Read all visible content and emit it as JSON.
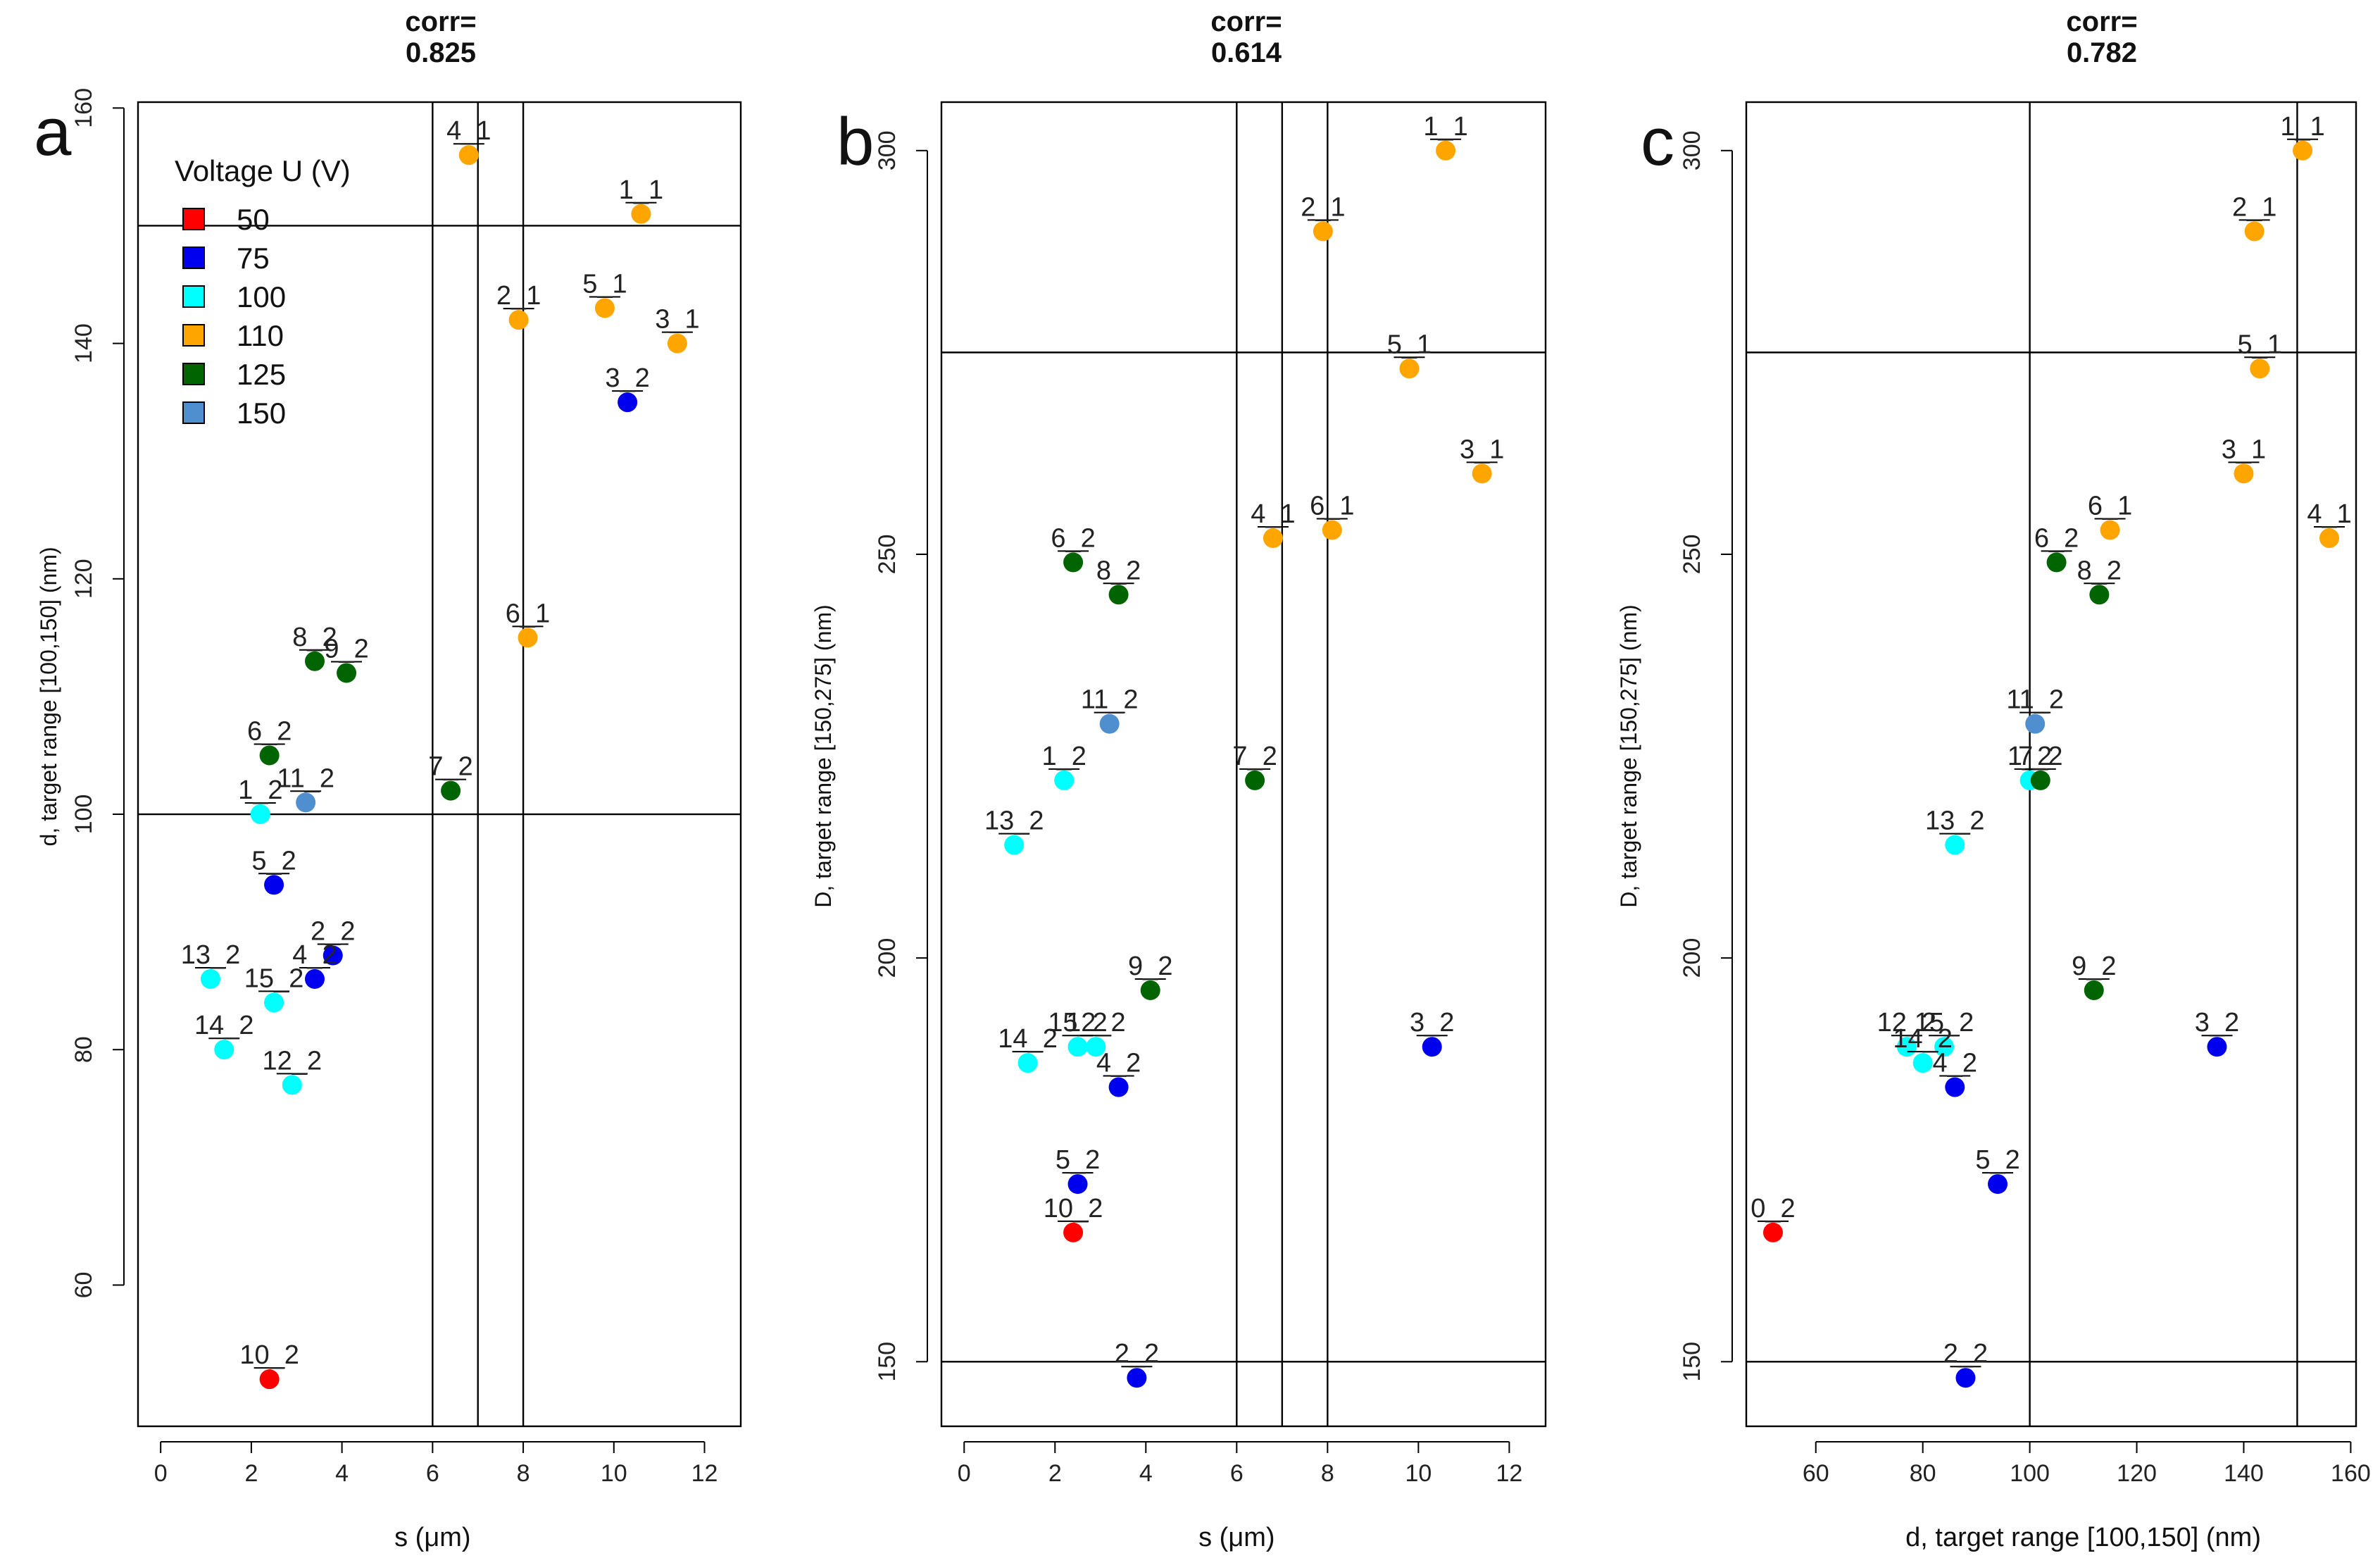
{
  "chart_data": [
    {
      "type": "scatter",
      "panel": "a",
      "title": "corr=",
      "subtitle": "0.825",
      "xlabel": "s  (μm)",
      "ylabel": "d, target range [100,150]   (nm)",
      "xlim": [
        -0.5,
        12.8
      ],
      "ylim": [
        48,
        160.5
      ],
      "xticks": [
        0,
        2,
        4,
        6,
        8,
        10,
        12
      ],
      "yticks": [
        60,
        80,
        100,
        120,
        140,
        160
      ],
      "vlines": [
        6,
        7,
        8
      ],
      "hlines": [
        100,
        150
      ],
      "legend": {
        "title": "Voltage  U (V)",
        "position": "top-left",
        "entries": [
          {
            "label": "50",
            "color": "#ff0000"
          },
          {
            "label": "75",
            "color": "#0000ee"
          },
          {
            "label": "100",
            "color": "#00ffff"
          },
          {
            "label": "110",
            "color": "#ffa500"
          },
          {
            "label": "125",
            "color": "#006400"
          },
          {
            "label": "150",
            "color": "#4f8fd0"
          }
        ]
      },
      "points": [
        {
          "label": "1_1",
          "x": 10.6,
          "y": 151,
          "color": "#ffa500"
        },
        {
          "label": "2_1",
          "x": 7.9,
          "y": 142,
          "color": "#ffa500"
        },
        {
          "label": "3_1",
          "x": 11.4,
          "y": 140,
          "color": "#ffa500"
        },
        {
          "label": "4_1",
          "x": 6.8,
          "y": 156,
          "color": "#ffa500"
        },
        {
          "label": "5_1",
          "x": 9.8,
          "y": 143,
          "color": "#ffa500"
        },
        {
          "label": "6_1",
          "x": 8.1,
          "y": 115,
          "color": "#ffa500"
        },
        {
          "label": "3_2",
          "x": 10.3,
          "y": 135,
          "color": "#0000ee"
        },
        {
          "label": "8_2",
          "x": 3.4,
          "y": 113,
          "color": "#006400"
        },
        {
          "label": "9_2",
          "x": 4.1,
          "y": 112,
          "color": "#006400"
        },
        {
          "label": "6_2",
          "x": 2.4,
          "y": 105,
          "color": "#006400"
        },
        {
          "label": "7_2",
          "x": 6.4,
          "y": 102,
          "color": "#006400"
        },
        {
          "label": "11_2",
          "x": 3.2,
          "y": 101,
          "color": "#4f8fd0"
        },
        {
          "label": "1_2",
          "x": 2.2,
          "y": 100,
          "color": "#00ffff"
        },
        {
          "label": "5_2",
          "x": 2.5,
          "y": 94,
          "color": "#0000ee"
        },
        {
          "label": "2_2",
          "x": 3.8,
          "y": 88,
          "color": "#0000ee"
        },
        {
          "label": "4_2",
          "x": 3.4,
          "y": 86,
          "color": "#0000ee"
        },
        {
          "label": "13_2",
          "x": 1.1,
          "y": 86,
          "color": "#00ffff"
        },
        {
          "label": "15_2",
          "x": 2.5,
          "y": 84,
          "color": "#00ffff"
        },
        {
          "label": "14_2",
          "x": 1.4,
          "y": 80,
          "color": "#00ffff"
        },
        {
          "label": "12_2",
          "x": 2.9,
          "y": 77,
          "color": "#00ffff"
        },
        {
          "label": "10_2",
          "x": 2.4,
          "y": 52,
          "color": "#ff0000"
        }
      ]
    },
    {
      "type": "scatter",
      "panel": "b",
      "title": "corr=",
      "subtitle": "0.614",
      "xlabel": "s  (μm)",
      "ylabel": "D, target range [150,275]   (nm)",
      "xlim": [
        -0.5,
        12.8
      ],
      "ylim": [
        142,
        306
      ],
      "xticks": [
        0,
        2,
        4,
        6,
        8,
        10,
        12
      ],
      "yticks": [
        150,
        200,
        250,
        300
      ],
      "vlines": [
        6,
        7,
        8
      ],
      "hlines": [
        150,
        275
      ],
      "points": [
        {
          "label": "1_1",
          "x": 10.6,
          "y": 300,
          "color": "#ffa500"
        },
        {
          "label": "2_1",
          "x": 7.9,
          "y": 290,
          "color": "#ffa500"
        },
        {
          "label": "5_1",
          "x": 9.8,
          "y": 273,
          "color": "#ffa500"
        },
        {
          "label": "3_1",
          "x": 11.4,
          "y": 260,
          "color": "#ffa500"
        },
        {
          "label": "4_1",
          "x": 6.8,
          "y": 252,
          "color": "#ffa500"
        },
        {
          "label": "6_1",
          "x": 8.1,
          "y": 253,
          "color": "#ffa500"
        },
        {
          "label": "6_2",
          "x": 2.4,
          "y": 249,
          "color": "#006400"
        },
        {
          "label": "8_2",
          "x": 3.4,
          "y": 245,
          "color": "#006400"
        },
        {
          "label": "11_2",
          "x": 3.2,
          "y": 229,
          "color": "#4f8fd0"
        },
        {
          "label": "1_2",
          "x": 2.2,
          "y": 222,
          "color": "#00ffff"
        },
        {
          "label": "7_2",
          "x": 6.4,
          "y": 222,
          "color": "#006400"
        },
        {
          "label": "13_2",
          "x": 1.1,
          "y": 214,
          "color": "#00ffff"
        },
        {
          "label": "9_2",
          "x": 4.1,
          "y": 196,
          "color": "#006400"
        },
        {
          "label": "15_2",
          "x": 2.5,
          "y": 189,
          "color": "#00ffff"
        },
        {
          "label": "12_2",
          "x": 2.9,
          "y": 189,
          "color": "#00ffff"
        },
        {
          "label": "14_2",
          "x": 1.4,
          "y": 187,
          "color": "#00ffff"
        },
        {
          "label": "4_2",
          "x": 3.4,
          "y": 184,
          "color": "#0000ee"
        },
        {
          "label": "3_2",
          "x": 10.3,
          "y": 189,
          "color": "#0000ee"
        },
        {
          "label": "5_2",
          "x": 2.5,
          "y": 172,
          "color": "#0000ee"
        },
        {
          "label": "10_2",
          "x": 2.4,
          "y": 166,
          "color": "#ff0000"
        },
        {
          "label": "2_2",
          "x": 3.8,
          "y": 148,
          "color": "#0000ee"
        }
      ]
    },
    {
      "type": "scatter",
      "panel": "c",
      "title": "corr=",
      "subtitle": "0.782",
      "xlabel": "d, target range [100,150]    (nm)",
      "ylabel": "D, target range [150,275]   (nm)",
      "xlim": [
        47,
        161
      ],
      "ylim": [
        142,
        306
      ],
      "xticks": [
        60,
        80,
        100,
        120,
        140,
        160
      ],
      "yticks": [
        150,
        200,
        250,
        300
      ],
      "vlines": [
        100,
        150
      ],
      "hlines": [
        150,
        275
      ],
      "points": [
        {
          "label": "1_1",
          "x": 151,
          "y": 300,
          "color": "#ffa500"
        },
        {
          "label": "2_1",
          "x": 142,
          "y": 290,
          "color": "#ffa500"
        },
        {
          "label": "5_1",
          "x": 143,
          "y": 273,
          "color": "#ffa500"
        },
        {
          "label": "3_1",
          "x": 140,
          "y": 260,
          "color": "#ffa500"
        },
        {
          "label": "6_1",
          "x": 115,
          "y": 253,
          "color": "#ffa500"
        },
        {
          "label": "4_1",
          "x": 156,
          "y": 252,
          "color": "#ffa500"
        },
        {
          "label": "6_2",
          "x": 105,
          "y": 249,
          "color": "#006400"
        },
        {
          "label": "8_2",
          "x": 113,
          "y": 245,
          "color": "#006400"
        },
        {
          "label": "11_2",
          "x": 101,
          "y": 229,
          "color": "#4f8fd0"
        },
        {
          "label": "1_2",
          "x": 100,
          "y": 222,
          "color": "#00ffff"
        },
        {
          "label": "7_2",
          "x": 102,
          "y": 222,
          "color": "#006400"
        },
        {
          "label": "13_2",
          "x": 86,
          "y": 214,
          "color": "#00ffff"
        },
        {
          "label": "9_2",
          "x": 112,
          "y": 196,
          "color": "#006400"
        },
        {
          "label": "12_2",
          "x": 77,
          "y": 189,
          "color": "#00ffff"
        },
        {
          "label": "15_2",
          "x": 84,
          "y": 189,
          "color": "#00ffff"
        },
        {
          "label": "14_2",
          "x": 80,
          "y": 187,
          "color": "#00ffff"
        },
        {
          "label": "4_2",
          "x": 86,
          "y": 184,
          "color": "#0000ee"
        },
        {
          "label": "3_2",
          "x": 135,
          "y": 189,
          "color": "#0000ee"
        },
        {
          "label": "5_2",
          "x": 94,
          "y": 172,
          "color": "#0000ee"
        },
        {
          "label": "0_2",
          "x": 52,
          "y": 166,
          "color": "#ff0000"
        },
        {
          "label": "2_2",
          "x": 88,
          "y": 148,
          "color": "#0000ee"
        }
      ]
    }
  ]
}
